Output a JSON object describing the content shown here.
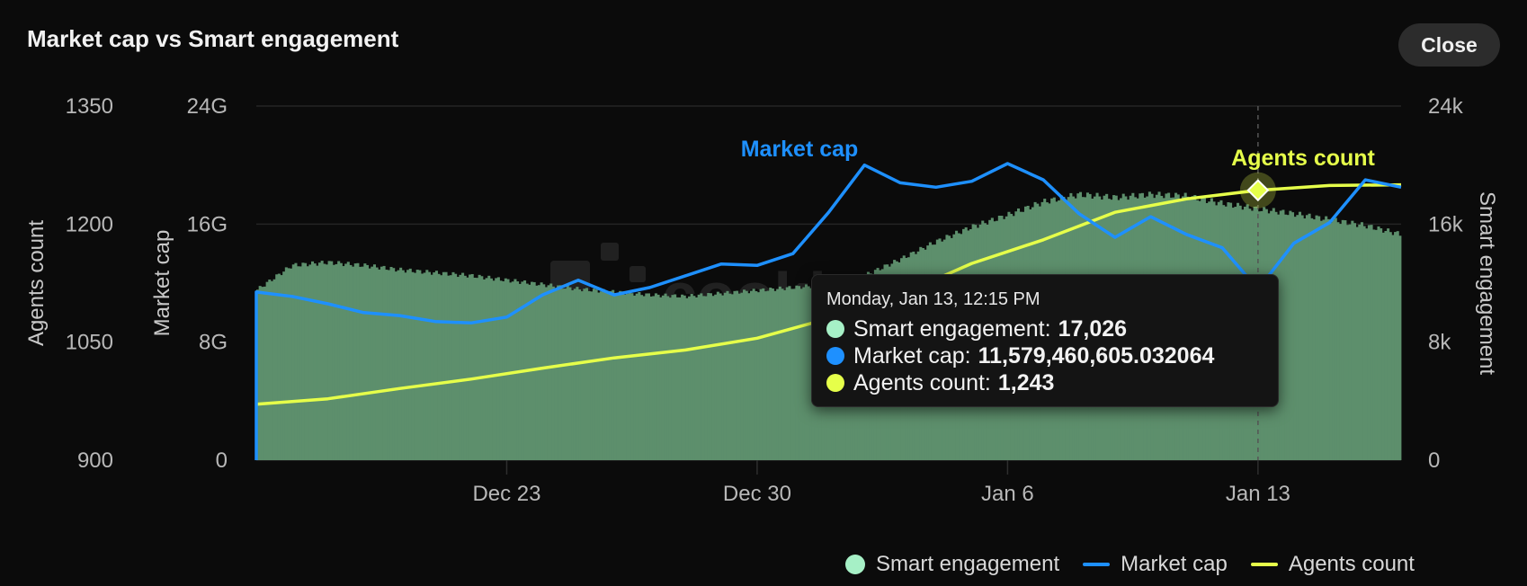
{
  "header": {
    "title": "Market cap vs Smart engagement",
    "close_label": "Close"
  },
  "colors": {
    "background": "#0b0b0b",
    "smart_engagement": "#5d8f6c",
    "smart_engagement_legend": "#a6f0c6",
    "market_cap": "#1e90ff",
    "agents_count": "#e6ff4a",
    "gridline": "#242424"
  },
  "tooltip": {
    "date": "Monday, Jan 13, 12:15 PM",
    "rows": [
      {
        "label": "Smart engagement:",
        "value": "17,026"
      },
      {
        "label": "Market cap:",
        "value": "11,579,460,605.032064"
      },
      {
        "label": "Agents count:",
        "value": "1,243"
      }
    ]
  },
  "legend": {
    "items": [
      {
        "label": "Smart engagement",
        "marker": "dot"
      },
      {
        "label": "Market cap",
        "marker": "line"
      },
      {
        "label": "Agents count",
        "marker": "line"
      }
    ]
  },
  "chart_data": {
    "type": "line",
    "x_type": "date",
    "x_ticks": [
      "Dec 23",
      "Dec 30",
      "Jan 6",
      "Jan 13"
    ],
    "x_tick_values": [
      "2024-12-23",
      "2024-12-30",
      "2025-01-06",
      "2025-01-13"
    ],
    "xlim": [
      "2024-12-16",
      "2025-01-17"
    ],
    "axes": {
      "agents_count": {
        "label": "Agents count",
        "ticks": [
          "1350",
          "1200",
          "1050",
          "900"
        ],
        "ylim": [
          900,
          1350
        ]
      },
      "market_cap": {
        "label": "Market cap",
        "ticks": [
          "24G",
          "16G",
          "8G",
          "0"
        ],
        "ylim": [
          0,
          24000000000
        ]
      },
      "smart_engagement": {
        "label": "Smart engagement",
        "ticks": [
          "24k",
          "16k",
          "8k",
          "0"
        ],
        "ylim": [
          0,
          24000
        ]
      }
    },
    "grid": true,
    "legend_position": "bottom-right",
    "series": [
      {
        "name": "Smart engagement",
        "type": "area",
        "axis": "smart_engagement",
        "x": [
          "2024-12-16",
          "2024-12-17",
          "2024-12-18",
          "2024-12-19",
          "2024-12-20",
          "2024-12-21",
          "2024-12-22",
          "2024-12-23",
          "2024-12-24",
          "2024-12-25",
          "2024-12-26",
          "2024-12-27",
          "2024-12-28",
          "2024-12-29",
          "2024-12-30",
          "2024-12-31",
          "2025-01-01",
          "2025-01-02",
          "2025-01-03",
          "2025-01-04",
          "2025-01-05",
          "2025-01-06",
          "2025-01-07",
          "2025-01-08",
          "2025-01-09",
          "2025-01-10",
          "2025-01-11",
          "2025-01-12",
          "2025-01-13",
          "2025-01-14",
          "2025-01-15",
          "2025-01-16",
          "2025-01-17"
        ],
        "values": [
          11500,
          13200,
          13400,
          13200,
          12900,
          12700,
          12500,
          12200,
          11900,
          11600,
          11400,
          11200,
          11100,
          11300,
          11500,
          11700,
          11900,
          12500,
          13600,
          14800,
          15800,
          16600,
          17500,
          18000,
          17800,
          18000,
          17900,
          17400,
          17026,
          16700,
          16300,
          15900,
          15300
        ]
      },
      {
        "name": "Market cap",
        "type": "line",
        "axis": "market_cap",
        "x": [
          "2024-12-16",
          "2024-12-16",
          "2024-12-17",
          "2024-12-18",
          "2024-12-19",
          "2024-12-20",
          "2024-12-21",
          "2024-12-22",
          "2024-12-23",
          "2024-12-24",
          "2024-12-25",
          "2024-12-26",
          "2024-12-27",
          "2024-12-28",
          "2024-12-29",
          "2024-12-30",
          "2024-12-31",
          "2025-01-01",
          "2025-01-02",
          "2025-01-03",
          "2025-01-04",
          "2025-01-05",
          "2025-01-06",
          "2025-01-07",
          "2025-01-08",
          "2025-01-09",
          "2025-01-10",
          "2025-01-11",
          "2025-01-12",
          "2025-01-13",
          "2025-01-14",
          "2025-01-15",
          "2025-01-16",
          "2025-01-17"
        ],
        "values": [
          0,
          11400000000,
          11100000000,
          10600000000,
          10000000000,
          9800000000,
          9400000000,
          9300000000,
          9700000000,
          11200000000,
          12200000000,
          11200000000,
          11700000000,
          12500000000,
          13300000000,
          13200000000,
          14000000000,
          16800000000,
          20000000000,
          18800000000,
          18500000000,
          18900000000,
          20100000000,
          19000000000,
          16700000000,
          15100000000,
          16500000000,
          15300000000,
          14400000000,
          11579460605,
          14700000000,
          16100000000,
          19000000000,
          18500000000
        ]
      },
      {
        "name": "Agents count",
        "type": "line",
        "axis": "agents_count",
        "x": [
          "2024-12-16",
          "2024-12-18",
          "2024-12-20",
          "2024-12-22",
          "2024-12-24",
          "2024-12-26",
          "2024-12-28",
          "2024-12-30",
          "2025-01-01",
          "2025-01-03",
          "2025-01-05",
          "2025-01-07",
          "2025-01-09",
          "2025-01-11",
          "2025-01-13",
          "2025-01-15",
          "2025-01-17"
        ],
        "values": [
          971,
          978,
          991,
          1003,
          1017,
          1030,
          1040,
          1055,
          1080,
          1110,
          1150,
          1180,
          1215,
          1232,
          1243,
          1249,
          1250
        ]
      }
    ],
    "annotations": [
      {
        "text": "Market cap",
        "series": "Market cap"
      },
      {
        "text": "Agents count",
        "series": "Agents count"
      }
    ],
    "highlight": {
      "x": "2025-01-13"
    }
  }
}
